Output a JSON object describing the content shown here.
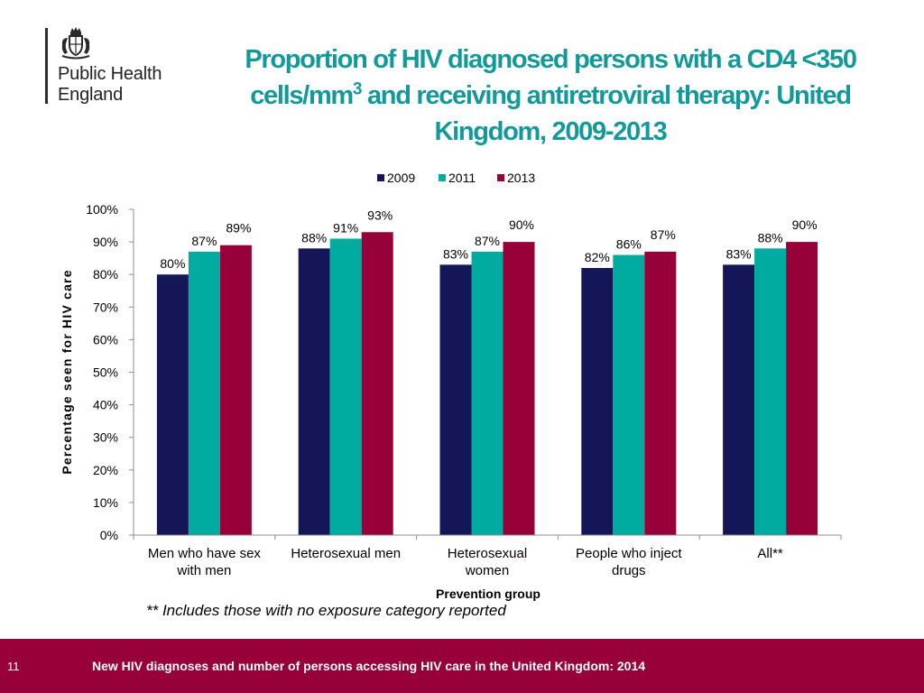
{
  "logo": {
    "org_line1": "Public Health",
    "org_line2": "England",
    "crest_icon": "royal-coat-of-arms-icon"
  },
  "title": {
    "part1": "Proportion of HIV diagnosed persons with a CD4 <350 cells/mm",
    "superscript": "3",
    "part2": " and receiving antiretroviral therapy: United Kingdom, 2009-2013"
  },
  "footnote": "** Includes those with no exposure category reported",
  "footer": {
    "page_number": "11",
    "text": "New HIV diagnoses and number of persons accessing HIV care in the United Kingdom: 2014",
    "color": "#98003a"
  },
  "chart_data": {
    "type": "bar",
    "categories": [
      [
        "Men who have sex",
        "with men"
      ],
      [
        "Heterosexual men"
      ],
      [
        "Heterosexual",
        "women"
      ],
      [
        "People who inject",
        "drugs"
      ],
      [
        "All**"
      ]
    ],
    "series": [
      {
        "name": "2009",
        "color": "#141658",
        "values": [
          80,
          88,
          83,
          82,
          83
        ]
      },
      {
        "name": "2011",
        "color": "#00aca0",
        "values": [
          87,
          91,
          87,
          86,
          88
        ]
      },
      {
        "name": "2013",
        "color": "#98003a",
        "values": [
          89,
          93,
          90,
          87,
          90
        ]
      }
    ],
    "value_suffix": "%",
    "xlabel": "Prevention group",
    "ylabel": "Percentage seen for HIV care",
    "ylim": [
      0,
      100
    ],
    "yticks": [
      "0%",
      "10%",
      "20%",
      "30%",
      "40%",
      "50%",
      "60%",
      "70%",
      "80%",
      "90%",
      "100%"
    ],
    "grid": false,
    "legend_position": "top"
  }
}
